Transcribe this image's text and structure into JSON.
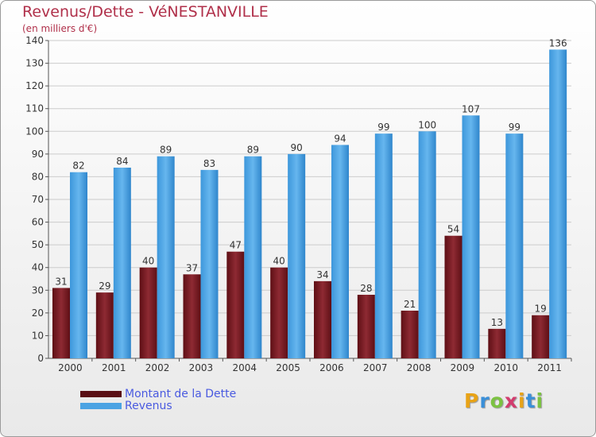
{
  "chart_data": {
    "type": "bar",
    "title": "Revenus/Dette - VéNESTANVILLE",
    "subtitle": "(en milliers d'€)",
    "categories": [
      "2000",
      "2001",
      "2002",
      "2003",
      "2004",
      "2005",
      "2006",
      "2007",
      "2008",
      "2009",
      "2010",
      "2011"
    ],
    "series": [
      {
        "name": "Montant de la Dette",
        "values": [
          31,
          29,
          40,
          37,
          47,
          40,
          34,
          28,
          21,
          54,
          13,
          19
        ],
        "color": "#7a1a22"
      },
      {
        "name": "Revenus",
        "values": [
          82,
          84,
          89,
          83,
          89,
          90,
          94,
          99,
          100,
          107,
          99,
          136
        ],
        "color": "#4ba3e3"
      }
    ],
    "ylim": [
      0,
      140
    ],
    "yticks": [
      0,
      10,
      20,
      30,
      40,
      50,
      60,
      70,
      80,
      90,
      100,
      110,
      120,
      130,
      140
    ],
    "grid": true,
    "legend_position": "bottom-left"
  },
  "logo": {
    "letters": [
      "P",
      "r",
      "o",
      "x",
      "i",
      "t",
      "i"
    ]
  },
  "colors": {
    "title": "#b0304a",
    "legend_text": "#4a5ae0",
    "grid": "#d0d0d0"
  }
}
